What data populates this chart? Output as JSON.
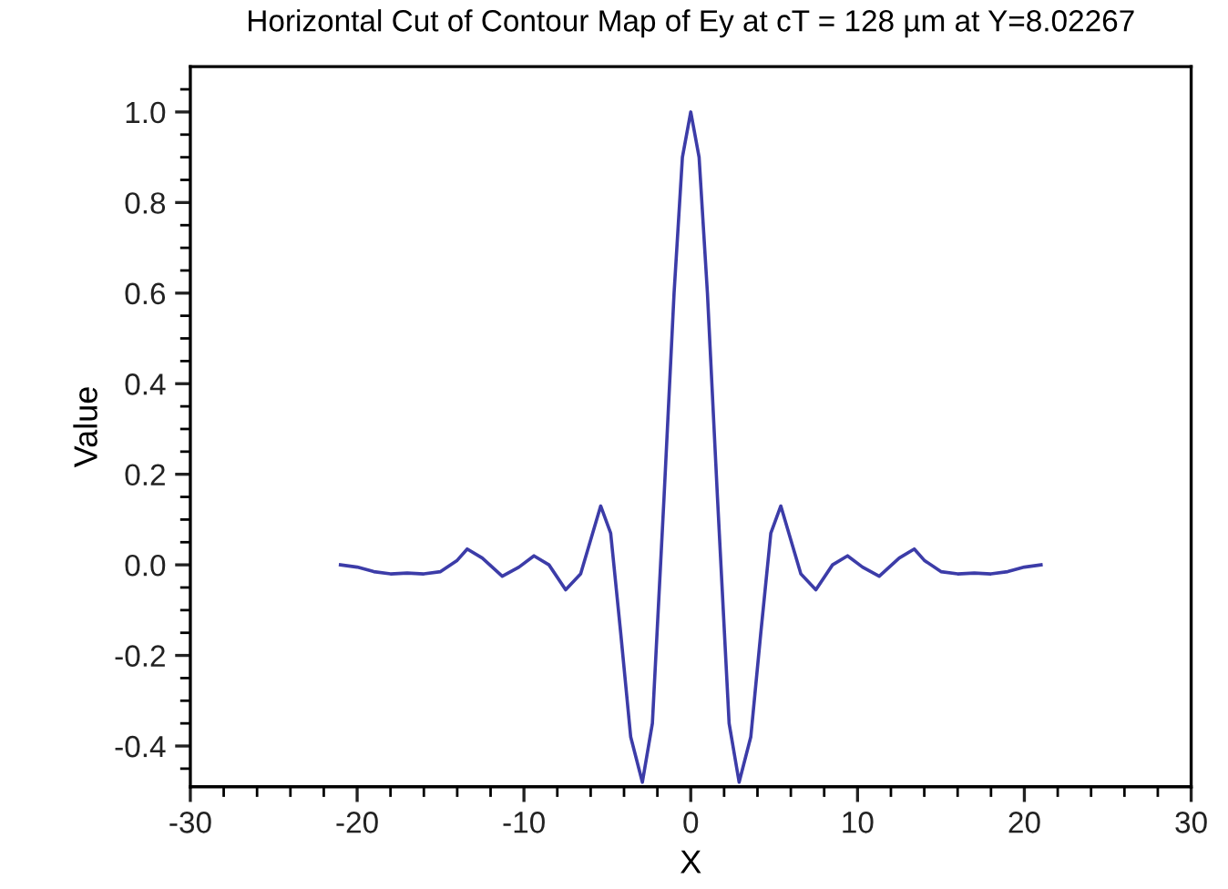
{
  "chart_data": {
    "type": "line",
    "title": "Horizontal Cut of Contour Map of Ey at cT = 128 µm at Y=8.02267",
    "xlabel": "X",
    "ylabel": "Value",
    "series": [
      {
        "color": "#3c3ca8",
        "x": [
          -21,
          -20,
          -19,
          -18,
          -17,
          -16,
          -15,
          -14,
          -13.4,
          -12.5,
          -11.3,
          -10.3,
          -9.4,
          -8.5,
          -7.5,
          -6.6,
          -5.4,
          -4.8,
          -4.2,
          -3.6,
          -2.9,
          -2.3,
          -1.6,
          -1,
          -0.5,
          0,
          0.5,
          1,
          1.6,
          2.3,
          2.9,
          3.6,
          4.2,
          4.8,
          5.4,
          6.6,
          7.5,
          8.5,
          9.4,
          10.3,
          11.3,
          12.5,
          13.4,
          14,
          15,
          16,
          17,
          18,
          19,
          20,
          21
        ],
        "values": [
          0.0,
          -0.005,
          -0.015,
          -0.02,
          -0.018,
          -0.02,
          -0.015,
          0.01,
          0.035,
          0.015,
          -0.025,
          -0.005,
          0.02,
          0.0,
          -0.055,
          -0.02,
          0.13,
          0.07,
          -0.15,
          -0.38,
          -0.48,
          -0.35,
          0.15,
          0.6,
          0.9,
          1.0,
          0.9,
          0.6,
          0.15,
          -0.35,
          -0.48,
          -0.38,
          -0.15,
          0.07,
          0.13,
          -0.02,
          -0.055,
          0.0,
          0.02,
          -0.005,
          -0.025,
          0.015,
          0.035,
          0.01,
          -0.015,
          -0.02,
          -0.018,
          -0.02,
          -0.015,
          -0.005,
          0.0
        ]
      }
    ],
    "xlim": [
      -30,
      30
    ],
    "ylim": [
      -0.49,
      1.1
    ],
    "xticks": [
      -30,
      {
        "value": -28,
        "label": null
      },
      {
        "value": -26,
        "label": null
      },
      {
        "value": -24,
        "label": null
      },
      {
        "value": -22,
        "label": null
      },
      -20,
      {
        "value": -18,
        "label": null
      },
      {
        "value": -16,
        "label": null
      },
      {
        "value": -14,
        "label": null
      },
      {
        "value": -12,
        "label": null
      },
      -10,
      {
        "value": -8,
        "label": null
      },
      {
        "value": -6,
        "label": null
      },
      {
        "value": -4,
        "label": null
      },
      {
        "value": -2,
        "label": null
      },
      0,
      {
        "value": 2,
        "label": null
      },
      {
        "value": 4,
        "label": null
      },
      {
        "value": 6,
        "label": null
      },
      {
        "value": 8,
        "label": null
      },
      10,
      {
        "value": 12,
        "label": null
      },
      {
        "value": 14,
        "label": null
      },
      {
        "value": 16,
        "label": null
      },
      {
        "value": 18,
        "label": null
      },
      20,
      {
        "value": 22,
        "label": null
      },
      {
        "value": 24,
        "label": null
      },
      {
        "value": 26,
        "label": null
      },
      {
        "value": 28,
        "label": null
      },
      30
    ],
    "yticks": [
      {
        "value": -0.45,
        "label": null
      },
      {
        "value": -0.4,
        "label": "-0.4"
      },
      {
        "value": -0.35,
        "label": null
      },
      {
        "value": -0.3,
        "label": null
      },
      {
        "value": -0.25,
        "label": null
      },
      {
        "value": -0.2,
        "label": "-0.2"
      },
      {
        "value": -0.15,
        "label": null
      },
      {
        "value": -0.1,
        "label": null
      },
      {
        "value": -0.05,
        "label": null
      },
      {
        "value": 0,
        "label": "0.0"
      },
      {
        "value": 0.05,
        "label": null
      },
      {
        "value": 0.1,
        "label": null
      },
      {
        "value": 0.15,
        "label": null
      },
      {
        "value": 0.2,
        "label": "0.2"
      },
      {
        "value": 0.25,
        "label": null
      },
      {
        "value": 0.3,
        "label": null
      },
      {
        "value": 0.35,
        "label": null
      },
      {
        "value": 0.4,
        "label": "0.4"
      },
      {
        "value": 0.45,
        "label": null
      },
      {
        "value": 0.5,
        "label": null
      },
      {
        "value": 0.55,
        "label": null
      },
      {
        "value": 0.6,
        "label": "0.6"
      },
      {
        "value": 0.65,
        "label": null
      },
      {
        "value": 0.7,
        "label": null
      },
      {
        "value": 0.75,
        "label": null
      },
      {
        "value": 0.8,
        "label": "0.8"
      },
      {
        "value": 0.85,
        "label": null
      },
      {
        "value": 0.9,
        "label": null
      },
      {
        "value": 0.95,
        "label": null
      },
      {
        "value": 1.0,
        "label": "1.0"
      },
      {
        "value": 1.05,
        "label": null
      }
    ],
    "grid": false,
    "legend": false
  }
}
